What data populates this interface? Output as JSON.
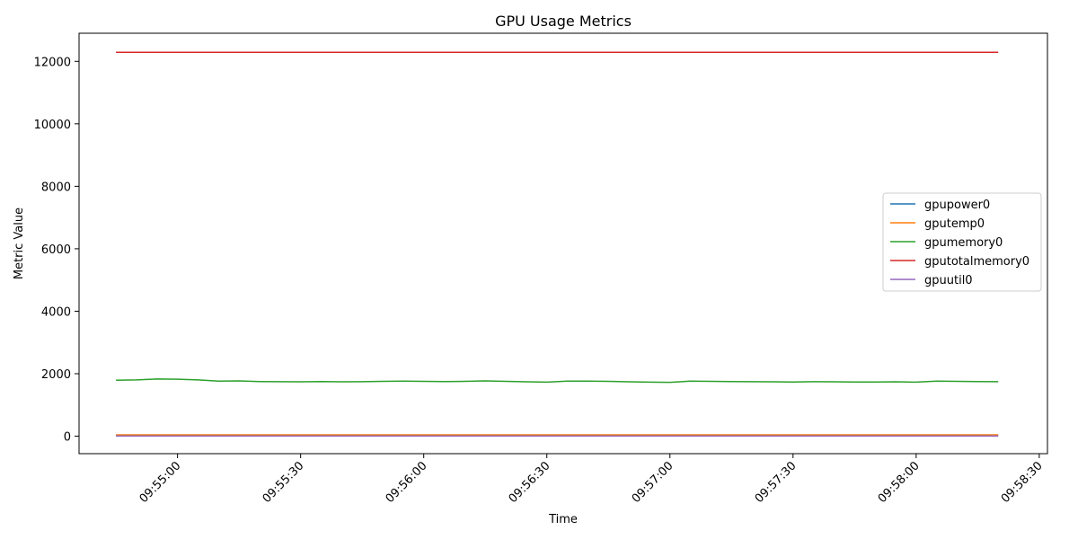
{
  "chart_data": {
    "type": "line",
    "title": "GPU Usage Metrics",
    "xlabel": "Time",
    "ylabel": "Metric Value",
    "x": [
      "09:54:45",
      "09:54:50",
      "09:54:55",
      "09:55:00",
      "09:55:05",
      "09:55:10",
      "09:55:15",
      "09:55:20",
      "09:55:25",
      "09:55:30",
      "09:55:35",
      "09:55:40",
      "09:55:45",
      "09:55:50",
      "09:55:55",
      "09:56:00",
      "09:56:05",
      "09:56:10",
      "09:56:15",
      "09:56:20",
      "09:56:25",
      "09:56:30",
      "09:56:35",
      "09:56:40",
      "09:56:45",
      "09:56:50",
      "09:56:55",
      "09:57:00",
      "09:57:05",
      "09:57:10",
      "09:57:15",
      "09:57:20",
      "09:57:25",
      "09:57:30",
      "09:57:35",
      "09:57:40",
      "09:57:45",
      "09:57:50",
      "09:57:55",
      "09:58:00",
      "09:58:05",
      "09:58:10",
      "09:58:15",
      "09:58:20"
    ],
    "xlim": [
      "09:54:36",
      "09:58:32"
    ],
    "ylim": [
      -560,
      12900
    ],
    "x_ticks": [
      "09:55:00",
      "09:55:30",
      "09:56:00",
      "09:56:30",
      "09:57:00",
      "09:57:30",
      "09:58:00",
      "09:58:30"
    ],
    "y_ticks": [
      0,
      2000,
      4000,
      6000,
      8000,
      10000,
      12000
    ],
    "grid": false,
    "legend_position": "center-right",
    "series": [
      {
        "name": "gpupower0",
        "color": "#1f77b4",
        "values": [
          18,
          18,
          18,
          18,
          18,
          18,
          18,
          18,
          18,
          18,
          18,
          18,
          18,
          18,
          18,
          18,
          18,
          18,
          18,
          18,
          18,
          18,
          18,
          18,
          18,
          18,
          18,
          18,
          18,
          18,
          18,
          18,
          18,
          18,
          18,
          18,
          18,
          18,
          18,
          18,
          18,
          18,
          18,
          18
        ]
      },
      {
        "name": "gputemp0",
        "color": "#ff7f0e",
        "values": [
          45,
          45,
          45,
          45,
          45,
          45,
          45,
          45,
          45,
          45,
          45,
          45,
          45,
          45,
          45,
          45,
          45,
          45,
          45,
          45,
          45,
          45,
          45,
          45,
          45,
          45,
          45,
          45,
          45,
          45,
          45,
          45,
          45,
          45,
          45,
          45,
          45,
          45,
          45,
          45,
          45,
          45,
          45,
          45
        ]
      },
      {
        "name": "gpumemory0",
        "color": "#2ca02c",
        "values": [
          1790,
          1800,
          1830,
          1825,
          1800,
          1760,
          1770,
          1750,
          1745,
          1740,
          1750,
          1740,
          1745,
          1755,
          1760,
          1755,
          1750,
          1755,
          1770,
          1755,
          1740,
          1730,
          1760,
          1765,
          1755,
          1740,
          1730,
          1725,
          1760,
          1755,
          1750,
          1745,
          1740,
          1735,
          1745,
          1740,
          1735,
          1735,
          1740,
          1730,
          1760,
          1755,
          1750,
          1745
        ]
      },
      {
        "name": "gputotalmemory0",
        "color": "#d62728",
        "values": [
          12288,
          12288,
          12288,
          12288,
          12288,
          12288,
          12288,
          12288,
          12288,
          12288,
          12288,
          12288,
          12288,
          12288,
          12288,
          12288,
          12288,
          12288,
          12288,
          12288,
          12288,
          12288,
          12288,
          12288,
          12288,
          12288,
          12288,
          12288,
          12288,
          12288,
          12288,
          12288,
          12288,
          12288,
          12288,
          12288,
          12288,
          12288,
          12288,
          12288,
          12288,
          12288,
          12288,
          12288
        ]
      },
      {
        "name": "gpuutil0",
        "color": "#9467bd",
        "values": [
          3,
          3,
          3,
          3,
          3,
          3,
          3,
          3,
          3,
          3,
          3,
          3,
          3,
          3,
          3,
          3,
          3,
          3,
          3,
          3,
          3,
          3,
          3,
          3,
          3,
          3,
          3,
          3,
          3,
          3,
          3,
          3,
          3,
          3,
          3,
          3,
          3,
          3,
          3,
          3,
          3,
          3,
          3,
          3
        ]
      }
    ]
  }
}
